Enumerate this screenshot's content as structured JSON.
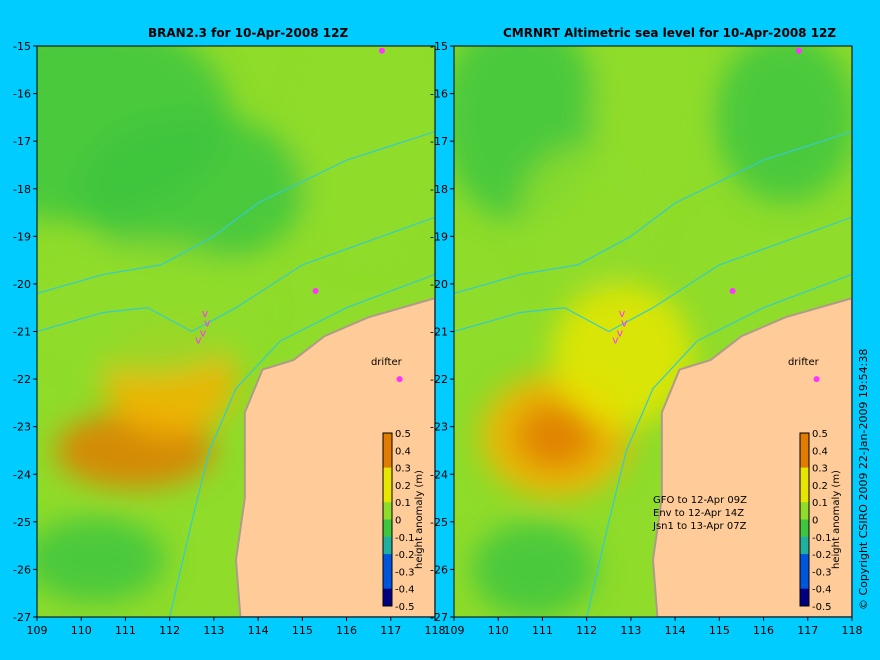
{
  "panels": [
    {
      "title": "BRAN2.3 for 10-Apr-2008 12Z",
      "drifter_label": "drifter",
      "legend_label": "height anomaly (m)"
    },
    {
      "title": "CMRNRT Altimetric sea level  for 10-Apr-2008 12Z",
      "drifter_label": "drifter",
      "legend_label": "height anomaly (m)",
      "notes": [
        "GFO to 12-Apr 09Z",
        "Env to 12-Apr 14Z",
        "Jsn1 to 13-Apr 07Z"
      ]
    }
  ],
  "axes": {
    "x_ticks": [
      "109",
      "110",
      "111",
      "112",
      "113",
      "114",
      "115",
      "116",
      "117",
      "118"
    ],
    "y_ticks": [
      "-15",
      "-16",
      "-17",
      "-18",
      "-19",
      "-20",
      "-21",
      "-22",
      "-23",
      "-24",
      "-25",
      "-26",
      "-27"
    ]
  },
  "colorbar": {
    "ticks": [
      "0.5",
      "0.4",
      "0.3",
      "0.2",
      "0.1",
      "0",
      "-0.1",
      "-0.2",
      "-0.3",
      "-0.4",
      "-0.5"
    ]
  },
  "copyright": "© Copyright CSIRO 2009  22-Jan-2009 19:54:38",
  "colors": {
    "background": "#00ccff",
    "land": "#ffcc99",
    "coast_shelf": "#b09b8b",
    "bathymetry_contour": "#33cccc",
    "drifter_marker": "#ff33ff"
  },
  "chart_data": {
    "type": "heatmap",
    "x_range": [
      109,
      118
    ],
    "y_range": [
      -27,
      -15
    ],
    "value_range": [
      -0.5,
      0.5
    ],
    "units": "m",
    "drifter_track": [
      {
        "lon": 112.8,
        "lat": -20.7
      },
      {
        "lon": 112.85,
        "lat": -20.9
      },
      {
        "lon": 112.75,
        "lat": -21.1
      },
      {
        "lon": 112.65,
        "lat": -21.25
      }
    ],
    "drifter_markers": [
      {
        "lon": 115.3,
        "lat": -20.15
      },
      {
        "lon": 116.8,
        "lat": -15.1
      },
      {
        "lon": 117.2,
        "lat": -22.0
      }
    ]
  }
}
